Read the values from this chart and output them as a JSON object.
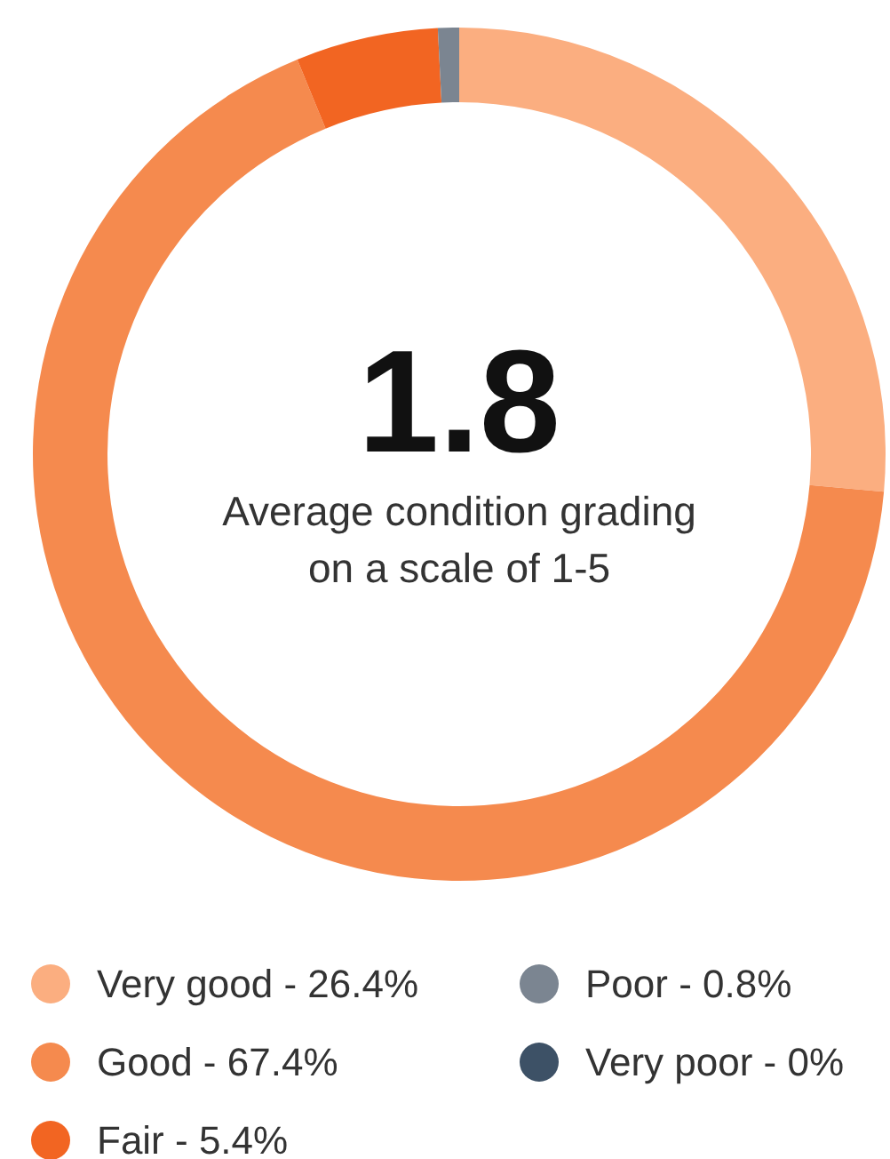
{
  "chart_data": {
    "type": "donut",
    "categories": [
      "Very good",
      "Good",
      "Fair",
      "Poor",
      "Very poor"
    ],
    "values": [
      26.4,
      67.4,
      5.4,
      0.8,
      0
    ],
    "colors": [
      "#fbae80",
      "#f58a4e",
      "#f26522",
      "#7b8591",
      "#3d5166"
    ],
    "value_labels": [
      "26.4%",
      "67.4%",
      "5.4%",
      "0.8%",
      "0%"
    ],
    "annotations": [
      "1.8",
      "Average condition grading on a scale of 1-5"
    ],
    "legend": "bottom"
  }
}
